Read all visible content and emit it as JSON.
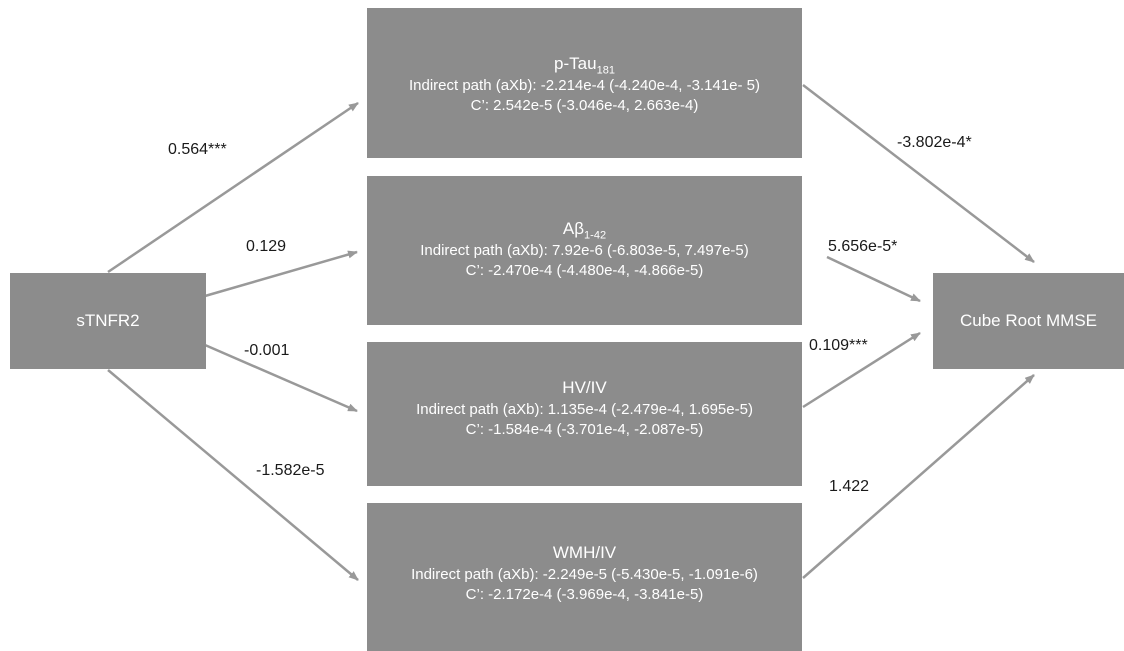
{
  "source": {
    "label": "sTNFR2"
  },
  "outcome": {
    "label": "Cube Root MMSE"
  },
  "mediators": [
    {
      "name": "p-Tau",
      "subscript": "181",
      "indirect": "Indirect path (aXb): -2.214e-4 (-4.240e-4, -3.141e- 5)",
      "direct": "C’:  2.542e-5 (-3.046e-4, 2.663e-4)"
    },
    {
      "name": "Aβ",
      "subscript": "1-42",
      "indirect": "Indirect path (aXb): 7.92e-6 (-6.803e-5, 7.497e-5)",
      "direct": "C’: -2.470e-4 (-4.480e-4, -4.866e-5)"
    },
    {
      "name": "HV/IV",
      "subscript": "",
      "indirect": "Indirect path (aXb): 1.135e-4 (-2.479e-4, 1.695e-5)",
      "direct": "C’: -1.584e-4 (-3.701e-4, -2.087e-5)"
    },
    {
      "name": "WMH/IV",
      "subscript": "",
      "indirect": "Indirect path (aXb): -2.249e-5 (-5.430e-5, -1.091e-6)",
      "direct": "C’: -2.172e-4 (-3.969e-4, -3.841e-5)"
    }
  ],
  "a_paths": [
    "0.564***",
    "0.129",
    "-0.001",
    "-1.582e-5"
  ],
  "b_paths": [
    "-3.802e-4*",
    "5.656e-5*",
    "0.109***",
    "1.422"
  ],
  "colors": {
    "box": "#8c8c8c",
    "arrow": "#999999",
    "text": "#ffffff"
  }
}
